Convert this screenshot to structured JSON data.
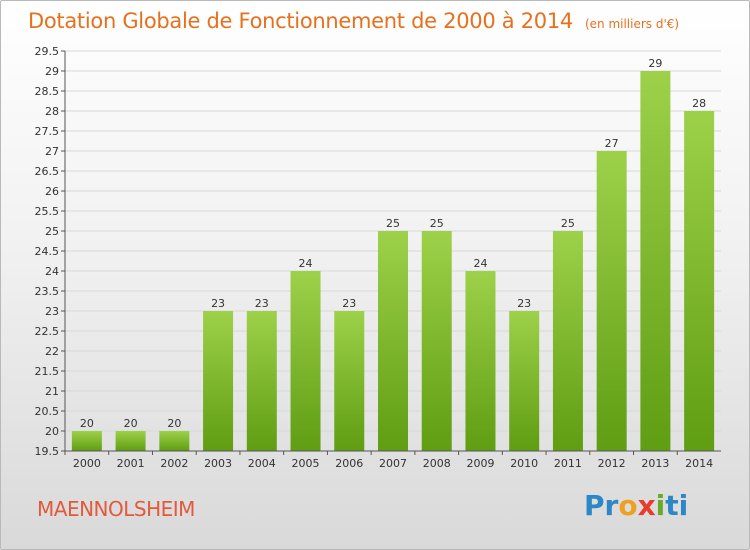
{
  "title": "Dotation Globale de Fonctionnement de 2000 à 2014",
  "unit": "(en milliers d'€)",
  "commune": "MAENNOLSHEIM",
  "logo": [
    "P",
    "r",
    "o",
    "x",
    "i",
    "ti"
  ],
  "colors": {
    "title": "#e8701d",
    "commune": "#e25a3c",
    "bar_top": "#9dd14a",
    "bar_bottom": "#5f9d12"
  },
  "chart_data": {
    "type": "bar",
    "categories": [
      "2000",
      "2001",
      "2002",
      "2003",
      "2004",
      "2005",
      "2006",
      "2007",
      "2008",
      "2009",
      "2010",
      "2011",
      "2012",
      "2013",
      "2014"
    ],
    "values": [
      20,
      20,
      20,
      23,
      23,
      24,
      23,
      25,
      25,
      24,
      23,
      25,
      27,
      29,
      28
    ],
    "data_labels": [
      "20",
      "20",
      "20",
      "23",
      "23",
      "24",
      "23",
      "25",
      "25",
      "24",
      "23",
      "25",
      "27",
      "29",
      "28"
    ],
    "y_ticks": [
      "19.5",
      "20",
      "20.5",
      "21",
      "21.5",
      "22",
      "22.5",
      "23",
      "23.5",
      "24",
      "24.5",
      "25",
      "25.5",
      "26",
      "26.5",
      "27",
      "27.5",
      "28",
      "28.5",
      "29",
      "29.5"
    ],
    "ylim": [
      19.5,
      29.5
    ],
    "grid": true
  }
}
